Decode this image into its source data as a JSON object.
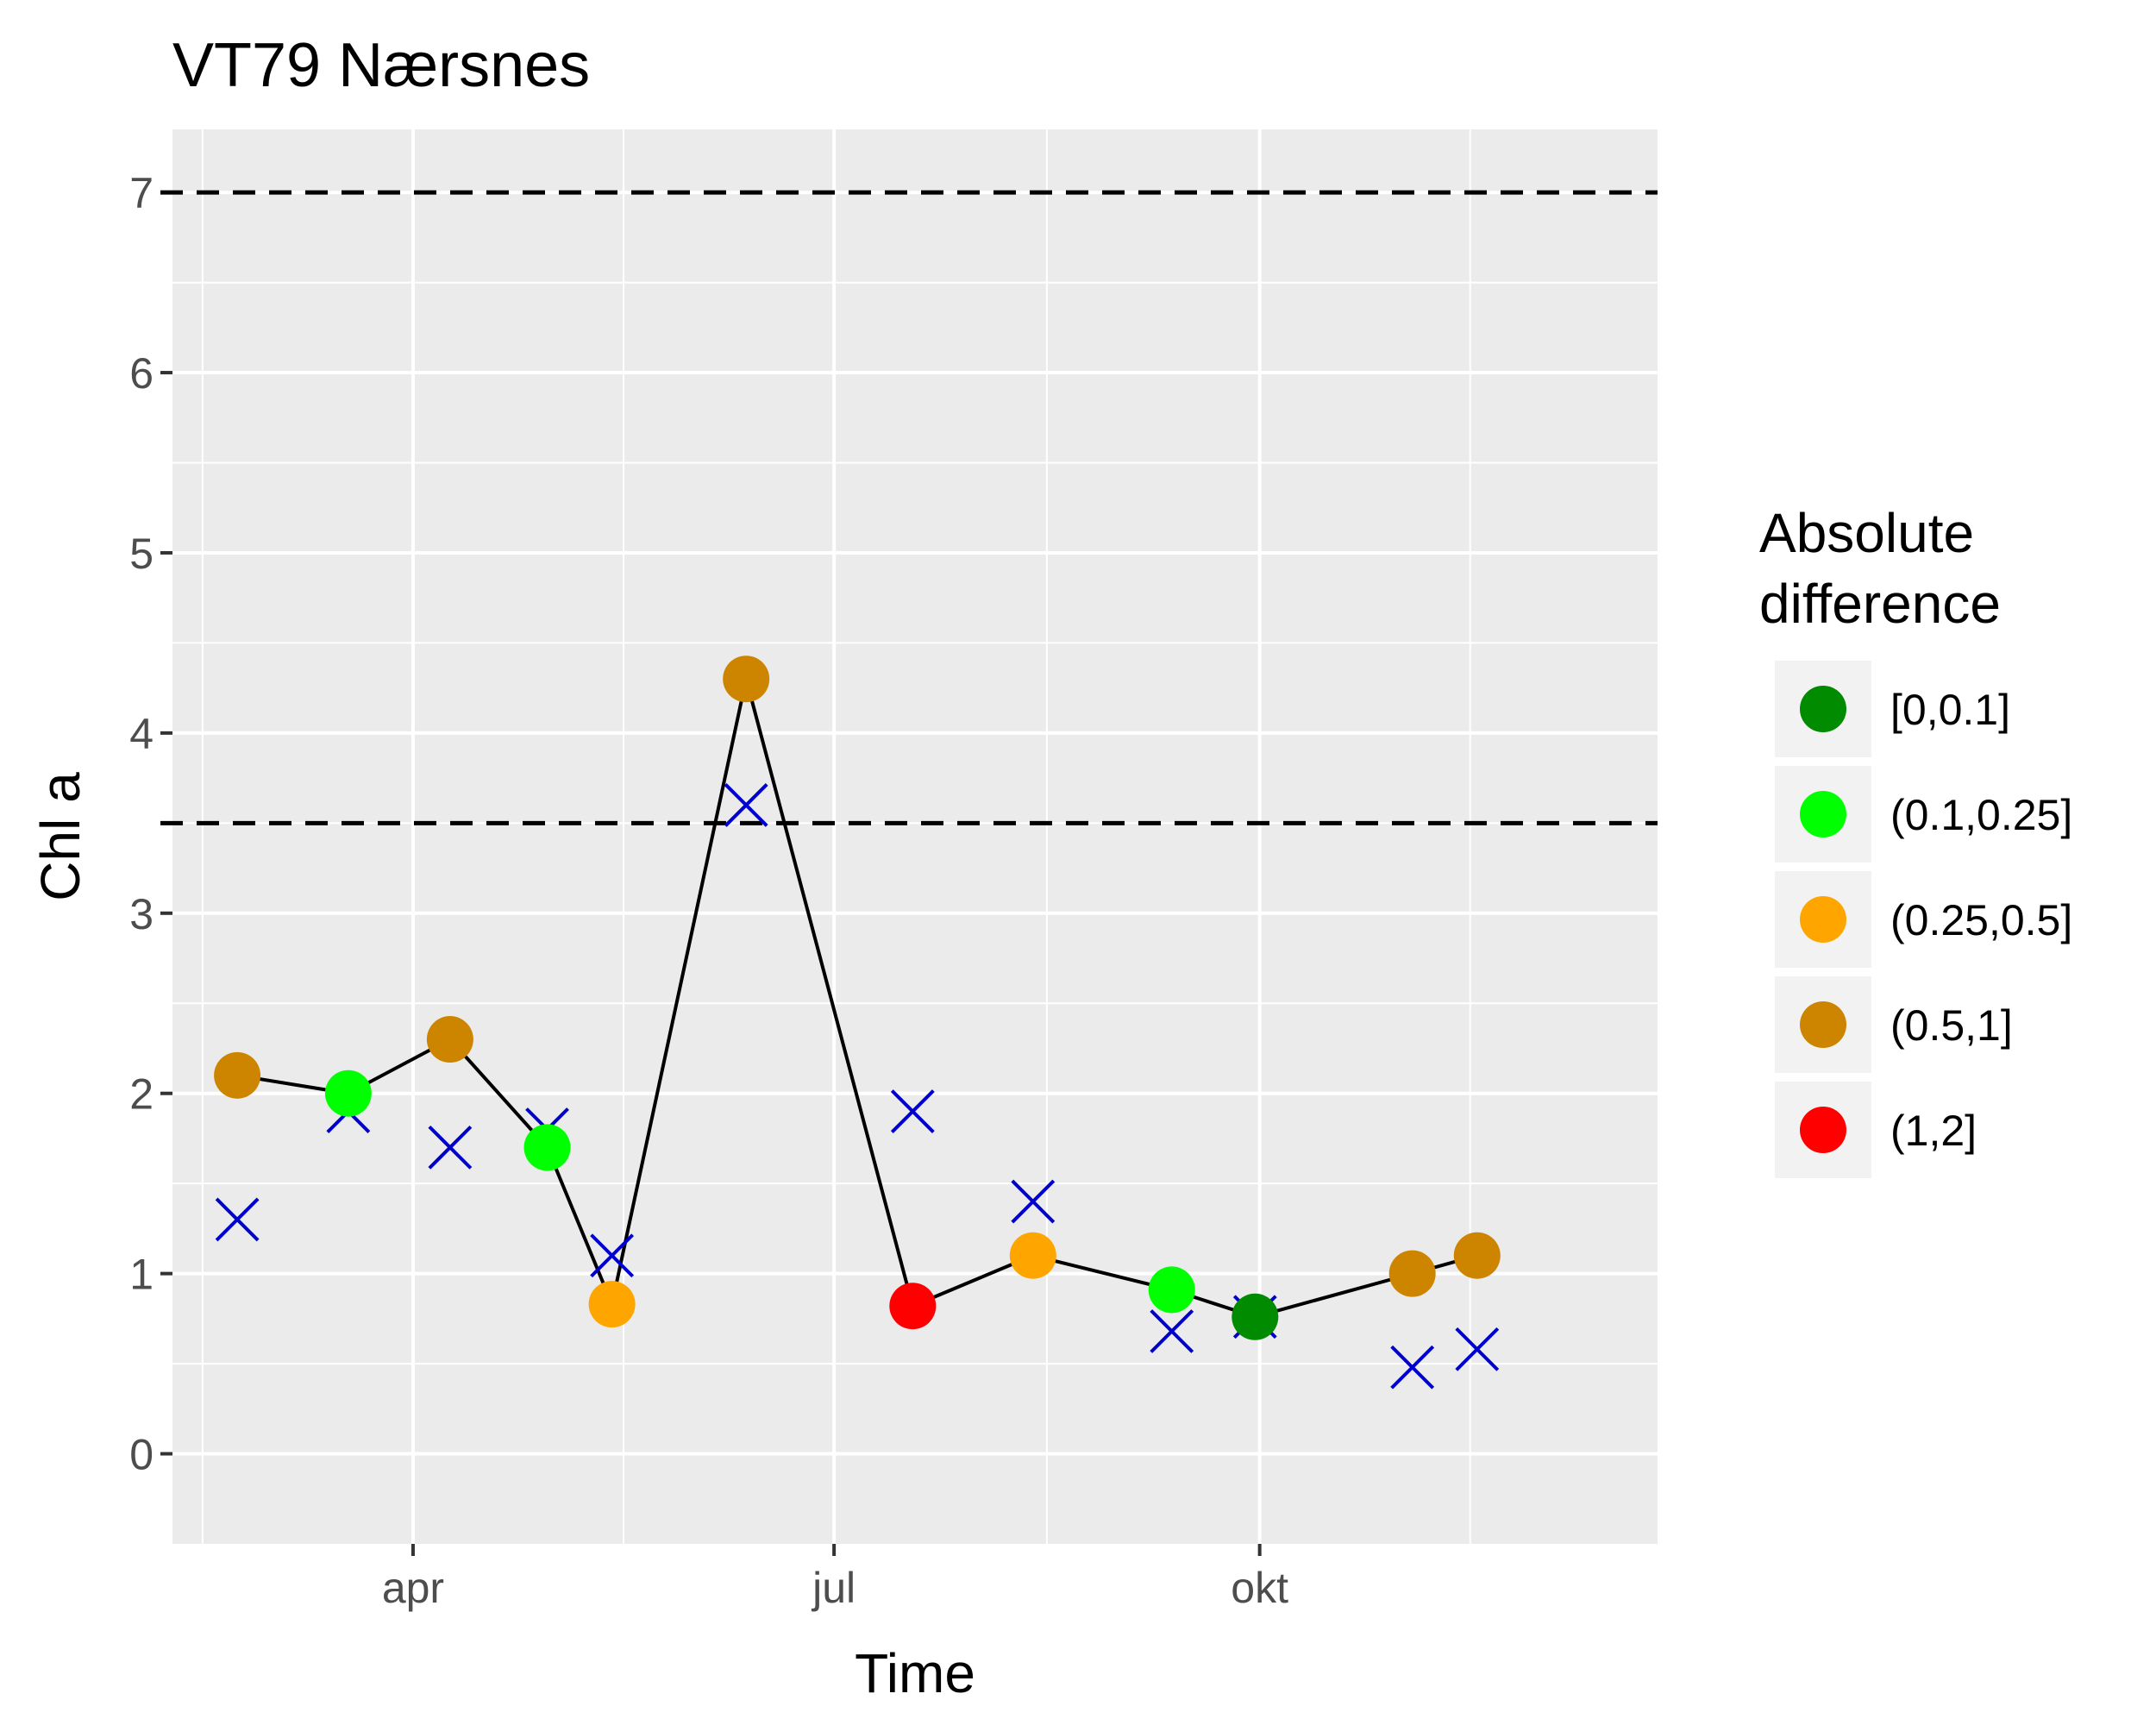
{
  "chart_data": {
    "type": "scatter",
    "title": "VT79 Nærsnes",
    "xlabel": "Time",
    "ylabel": "Chl a",
    "x_ticks": [
      {
        "label": "apr",
        "date": "2017-04-01"
      },
      {
        "label": "jul",
        "date": "2017-07-01"
      },
      {
        "label": "okt",
        "date": "2017-10-01"
      }
    ],
    "x_range": [
      "2017-02-08",
      "2017-12-26"
    ],
    "ylim": [
      -0.5,
      7.35
    ],
    "y_ticks": [
      0,
      1,
      2,
      3,
      4,
      5,
      6,
      7
    ],
    "reference_lines": [
      7,
      3.5
    ],
    "observed": [
      {
        "date": "2017-02-22",
        "value": 2.1,
        "class": "(0.5,1]"
      },
      {
        "date": "2017-03-18",
        "value": 2.0,
        "class": "(0.1,0.25]"
      },
      {
        "date": "2017-04-09",
        "value": 2.3,
        "class": "(0.5,1]"
      },
      {
        "date": "2017-04-30",
        "value": 1.7,
        "class": "(0.1,0.25]"
      },
      {
        "date": "2017-05-14",
        "value": 0.83,
        "class": "(0.25,0.5]"
      },
      {
        "date": "2017-06-12",
        "value": 4.3,
        "class": "(0.5,1]"
      },
      {
        "date": "2017-07-18",
        "value": 0.82,
        "class": "(1,2]"
      },
      {
        "date": "2017-08-13",
        "value": 1.1,
        "class": "(0.25,0.5]"
      },
      {
        "date": "2017-09-12",
        "value": 0.91,
        "class": "(0.1,0.25]"
      },
      {
        "date": "2017-09-30",
        "value": 0.76,
        "class": "[0,0.1]"
      },
      {
        "date": "2017-11-03",
        "value": 1.0,
        "class": "(0.5,1]"
      },
      {
        "date": "2017-11-17",
        "value": 1.1,
        "class": "(0.5,1]"
      }
    ],
    "predicted": [
      {
        "date": "2017-02-22",
        "value": 1.3
      },
      {
        "date": "2017-03-18",
        "value": 1.9
      },
      {
        "date": "2017-04-09",
        "value": 1.7
      },
      {
        "date": "2017-04-30",
        "value": 1.8
      },
      {
        "date": "2017-05-14",
        "value": 1.1
      },
      {
        "date": "2017-06-12",
        "value": 3.6
      },
      {
        "date": "2017-07-18",
        "value": 1.9
      },
      {
        "date": "2017-08-13",
        "value": 1.4
      },
      {
        "date": "2017-09-12",
        "value": 0.68
      },
      {
        "date": "2017-09-30",
        "value": 0.76
      },
      {
        "date": "2017-11-03",
        "value": 0.48
      },
      {
        "date": "2017-11-17",
        "value": 0.58
      }
    ],
    "legend": {
      "title_line1": "Absolute",
      "title_line2": "difference",
      "placement": "right",
      "entries": [
        {
          "label": "[0,0.1]",
          "color": "#008b00"
        },
        {
          "label": "(0.1,0.25]",
          "color": "#00ff00"
        },
        {
          "label": "(0.25,0.5]",
          "color": "#ffa500"
        },
        {
          "label": "(0.5,1]",
          "color": "#cd8500"
        },
        {
          "label": "(1,2]",
          "color": "#ff0000"
        }
      ]
    },
    "colors": {
      "panel": "#ebebeb",
      "grid": "#ffffff",
      "line": "#000000",
      "predicted_marker": "#0000cd",
      "reference_line": "#000000"
    }
  }
}
